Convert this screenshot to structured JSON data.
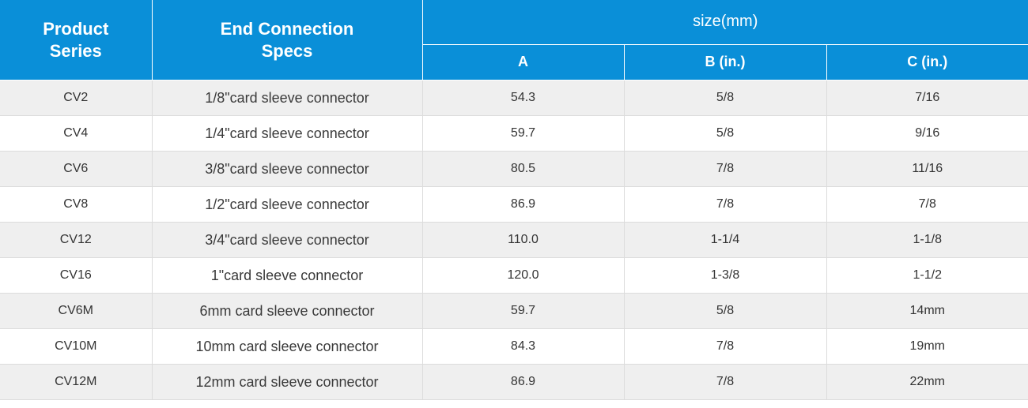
{
  "header": {
    "product_series": "Product\nSeries",
    "end_connection": "End Connection\nSpecs",
    "size_group": "size(mm)",
    "col_a": "A",
    "col_b": "B (in.)",
    "col_c": "C (in.)"
  },
  "rows": [
    {
      "series": "CV2",
      "spec": "1/8\"card sleeve connector",
      "a": "54.3",
      "b": "5/8",
      "c": "7/16"
    },
    {
      "series": "CV4",
      "spec": "1/4\"card sleeve connector",
      "a": "59.7",
      "b": "5/8",
      "c": "9/16"
    },
    {
      "series": "CV6",
      "spec": "3/8\"card sleeve connector",
      "a": "80.5",
      "b": "7/8",
      "c": "11/16"
    },
    {
      "series": "CV8",
      "spec": "1/2\"card sleeve connector",
      "a": "86.9",
      "b": "7/8",
      "c": "7/8"
    },
    {
      "series": "CV12",
      "spec": "3/4\"card sleeve connector",
      "a": "110.0",
      "b": "1-1/4",
      "c": "1-1/8"
    },
    {
      "series": "CV16",
      "spec": "1\"card sleeve connector",
      "a": "120.0",
      "b": "1-3/8",
      "c": "1-1/2"
    },
    {
      "series": "CV6M",
      "spec": "6mm card sleeve connector",
      "a": "59.7",
      "b": "5/8",
      "c": "14mm"
    },
    {
      "series": "CV10M",
      "spec": "10mm card sleeve connector",
      "a": "84.3",
      "b": "7/8",
      "c": "19mm"
    },
    {
      "series": "CV12M",
      "spec": "12mm card sleeve connector",
      "a": "86.9",
      "b": "7/8",
      "c": "22mm"
    }
  ],
  "colors": {
    "header_bg": "#0a8fd8",
    "row_alt_bg": "#efefef"
  }
}
